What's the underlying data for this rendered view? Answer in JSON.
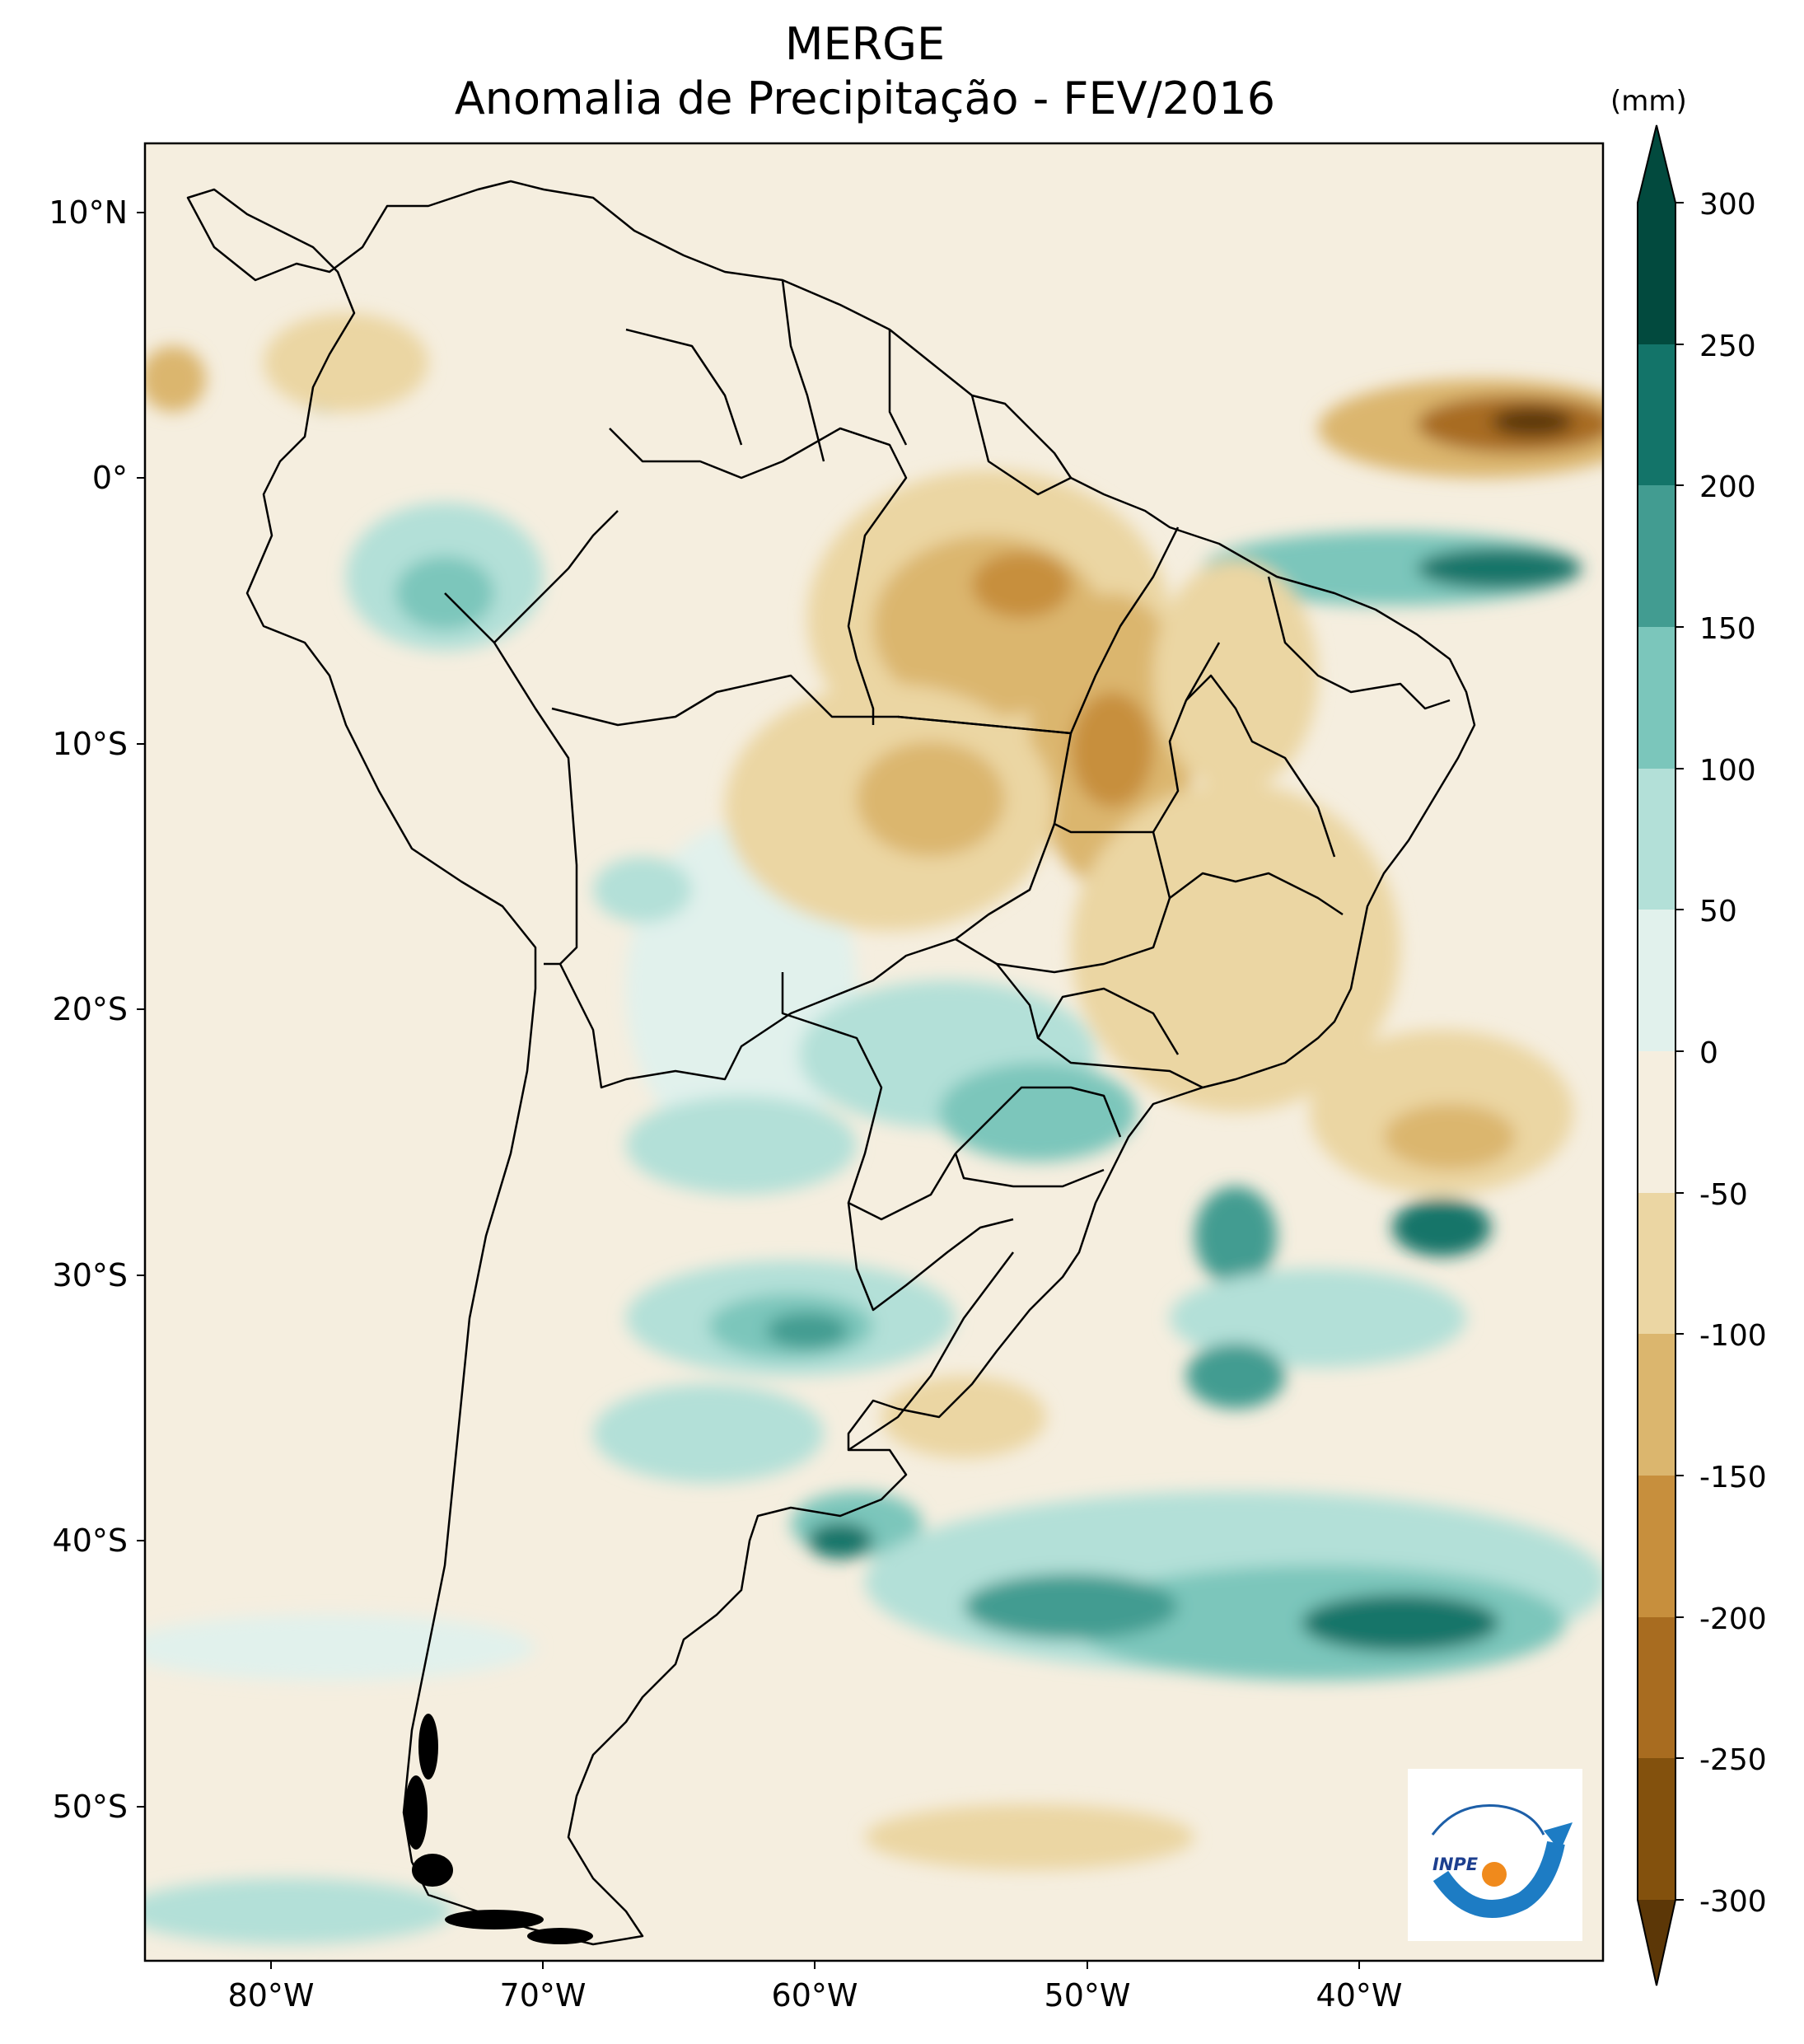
{
  "title": "MERGE",
  "subtitle": "Anomalia de Precipitação - FEV/2016",
  "colorbar": {
    "unit_label": "(mm)",
    "levels": [
      -300,
      -250,
      -200,
      -150,
      -100,
      -50,
      0,
      50,
      100,
      150,
      200,
      250,
      300
    ],
    "tick_labels": [
      "300",
      "250",
      "200",
      "150",
      "100",
      "50",
      "0",
      "-50",
      "-100",
      "-150",
      "-200",
      "-250",
      "-300"
    ],
    "colors": [
      "#5c3707",
      "#83510d",
      "#a86c20",
      "#c78f3d",
      "#dbb66e",
      "#ebd6a3",
      "#f5eedf",
      "#e1f1ec",
      "#b3e0d8",
      "#7bc6bb",
      "#429c91",
      "#137469",
      "#024a3e"
    ]
  },
  "axes": {
    "lat_labels": [
      "10°N",
      "0°",
      "10°S",
      "20°S",
      "30°S",
      "40°S",
      "50°S"
    ],
    "lon_labels": [
      "80°W",
      "70°W",
      "60°W",
      "50°W",
      "40°W"
    ]
  },
  "logo": {
    "text": "INPE"
  },
  "palette": {
    "ocean_base": "#f5eedf",
    "border": "#000000"
  }
}
